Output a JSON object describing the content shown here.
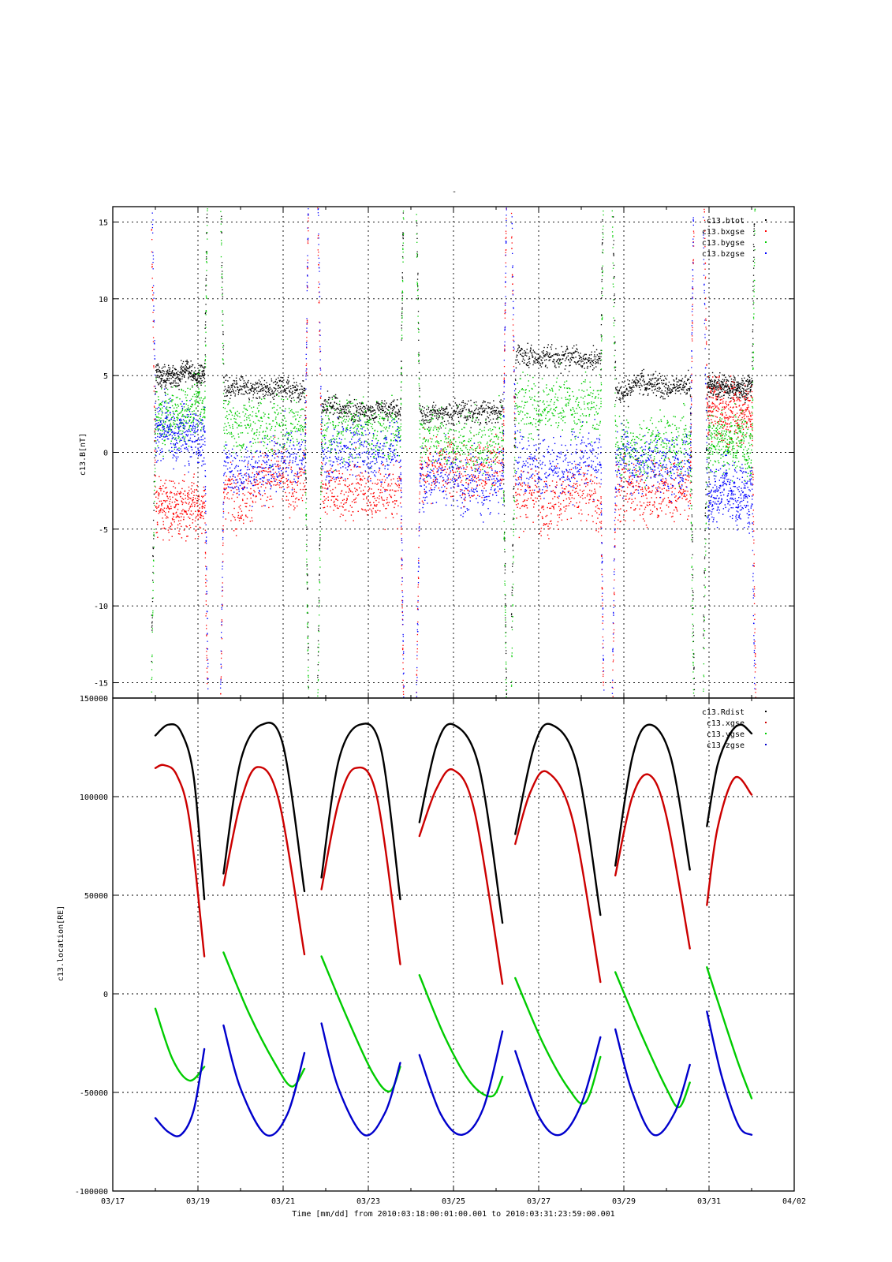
{
  "page_title": "-",
  "x_axis": {
    "tick_labels": [
      "03/17",
      "03/19",
      "03/21",
      "03/23",
      "03/25",
      "03/27",
      "03/29",
      "03/31",
      "04/02"
    ],
    "label": "Time [mm/dd]  from 2010:03:18:00:01:00.001  to  2010:03:31:23:59:00.001",
    "range": [
      "2010-03-17T00:00",
      "2010-04-02T00:00"
    ]
  },
  "chart_data": [
    {
      "type": "scatter",
      "ylabel": "c13.B[nT]",
      "ylim": [
        -16,
        16
      ],
      "yticks": [
        15,
        10,
        5,
        0,
        -5,
        -10,
        -15
      ],
      "grid": true,
      "legend_placement": "top-right",
      "x_start": "2010-03-18T00:01",
      "x_end": "2010-03-31T23:59",
      "segments": [
        [
          18.0,
          19.15
        ],
        [
          19.6,
          21.5
        ],
        [
          21.9,
          23.75
        ],
        [
          24.2,
          26.15
        ],
        [
          26.45,
          28.45
        ],
        [
          28.8,
          30.55
        ],
        [
          30.95,
          32.0
        ]
      ],
      "series": [
        {
          "name": "c13.btot",
          "color": "#000000",
          "values_by_segment": [
            5.2,
            4.2,
            2.9,
            2.7,
            6.3,
            4.3,
            4.4
          ]
        },
        {
          "name": "c13.bxgse",
          "color": "#ff0000",
          "values_by_segment": [
            -3.4,
            -2.2,
            -2.3,
            -1.2,
            -2.8,
            -2.3,
            2.8
          ]
        },
        {
          "name": "c13.bygse",
          "color": "#00cc00",
          "values_by_segment": [
            2.8,
            2.0,
            1.6,
            1.0,
            3.0,
            0.5,
            0.8
          ]
        },
        {
          "name": "c13.bzgse",
          "color": "#0000ff",
          "values_by_segment": [
            1.0,
            -0.8,
            0.0,
            -1.8,
            -0.8,
            -0.5,
            -2.5
          ]
        }
      ]
    },
    {
      "type": "scatter",
      "ylabel": "c13.location[RE]",
      "ylim": [
        -100000,
        150000
      ],
      "yticks": [
        150000,
        100000,
        50000,
        0,
        -50000,
        -100000
      ],
      "grid": true,
      "legend_placement": "top-right",
      "segments": [
        [
          18.0,
          19.15
        ],
        [
          19.6,
          21.5
        ],
        [
          21.9,
          23.75
        ],
        [
          24.2,
          26.15
        ],
        [
          26.45,
          28.45
        ],
        [
          28.8,
          30.55
        ],
        [
          30.95,
          32.0
        ]
      ],
      "series": [
        {
          "name": "c13.Rdist",
          "color": "#000000",
          "points_by_segment": [
            [
              [
                18.0,
                131000
              ],
              [
                18.3,
                136500
              ],
              [
                18.6,
                133000
              ],
              [
                18.9,
                110000
              ],
              [
                19.15,
                48000
              ]
            ],
            [
              [
                19.6,
                61000
              ],
              [
                20.0,
                118000
              ],
              [
                20.5,
                136500
              ],
              [
                21.0,
                126000
              ],
              [
                21.5,
                52000
              ]
            ],
            [
              [
                21.9,
                59000
              ],
              [
                22.3,
                118000
              ],
              [
                22.8,
                136500
              ],
              [
                23.3,
                124000
              ],
              [
                23.75,
                48000
              ]
            ],
            [
              [
                24.2,
                87000
              ],
              [
                24.6,
                126000
              ],
              [
                25.0,
                136500
              ],
              [
                25.6,
                115000
              ],
              [
                26.15,
                36000
              ]
            ],
            [
              [
                26.45,
                81000
              ],
              [
                26.9,
                126000
              ],
              [
                27.3,
                136500
              ],
              [
                27.9,
                116000
              ],
              [
                28.45,
                40000
              ]
            ],
            [
              [
                28.8,
                65000
              ],
              [
                29.2,
                120000
              ],
              [
                29.6,
                136500
              ],
              [
                30.1,
                120000
              ],
              [
                30.55,
                63000
              ]
            ],
            [
              [
                30.95,
                85000
              ],
              [
                31.2,
                116000
              ],
              [
                31.5,
                132000
              ],
              [
                31.75,
                136500
              ],
              [
                32.0,
                132000
              ]
            ]
          ]
        },
        {
          "name": "c13.xgse",
          "color": "#cc0000",
          "points_by_segment": [
            [
              [
                18.0,
                114500
              ],
              [
                18.2,
                116000
              ],
              [
                18.5,
                111000
              ],
              [
                18.8,
                88000
              ],
              [
                19.15,
                19000
              ]
            ],
            [
              [
                19.6,
                55000
              ],
              [
                20.0,
                97000
              ],
              [
                20.4,
                115000
              ],
              [
                20.9,
                98000
              ],
              [
                21.5,
                20000
              ]
            ],
            [
              [
                21.9,
                53000
              ],
              [
                22.3,
                97000
              ],
              [
                22.7,
                114500
              ],
              [
                23.2,
                100000
              ],
              [
                23.75,
                15000
              ]
            ],
            [
              [
                24.2,
                80000
              ],
              [
                24.6,
                104000
              ],
              [
                25.0,
                113500
              ],
              [
                25.5,
                92000
              ],
              [
                26.15,
                5000
              ]
            ],
            [
              [
                26.45,
                76000
              ],
              [
                26.8,
                102000
              ],
              [
                27.2,
                112500
              ],
              [
                27.8,
                88000
              ],
              [
                28.45,
                6000
              ]
            ],
            [
              [
                28.8,
                60000
              ],
              [
                29.2,
                100000
              ],
              [
                29.6,
                111000
              ],
              [
                30.0,
                90000
              ],
              [
                30.55,
                23000
              ]
            ],
            [
              [
                30.95,
                45000
              ],
              [
                31.2,
                84000
              ],
              [
                31.6,
                109500
              ],
              [
                32.0,
                101000
              ]
            ]
          ]
        },
        {
          "name": "c13.ygse",
          "color": "#00cc00",
          "points_by_segment": [
            [
              [
                18.0,
                -7500
              ],
              [
                18.4,
                -33000
              ],
              [
                18.8,
                -44000
              ],
              [
                19.15,
                -37000
              ]
            ],
            [
              [
                19.6,
                21000
              ],
              [
                20.2,
                -10000
              ],
              [
                20.8,
                -35000
              ],
              [
                21.2,
                -47000
              ],
              [
                21.5,
                -38000
              ]
            ],
            [
              [
                21.9,
                19000
              ],
              [
                22.5,
                -12000
              ],
              [
                23.1,
                -40000
              ],
              [
                23.5,
                -49500
              ],
              [
                23.75,
                -37000
              ]
            ],
            [
              [
                24.2,
                9500
              ],
              [
                24.8,
                -22000
              ],
              [
                25.4,
                -45000
              ],
              [
                25.9,
                -52000
              ],
              [
                26.15,
                -42000
              ]
            ],
            [
              [
                26.45,
                8000
              ],
              [
                27.1,
                -25000
              ],
              [
                27.7,
                -48000
              ],
              [
                28.1,
                -55000
              ],
              [
                28.45,
                -32000
              ]
            ],
            [
              [
                28.8,
                11000
              ],
              [
                29.4,
                -20000
              ],
              [
                30.0,
                -48000
              ],
              [
                30.3,
                -57500
              ],
              [
                30.55,
                -45000
              ]
            ],
            [
              [
                30.95,
                13500
              ],
              [
                31.3,
                -10000
              ],
              [
                31.7,
                -36000
              ],
              [
                32.0,
                -53000
              ]
            ]
          ]
        },
        {
          "name": "c13.zgse",
          "color": "#0000cc",
          "points_by_segment": [
            [
              [
                18.0,
                -63000
              ],
              [
                18.3,
                -70000
              ],
              [
                18.6,
                -71500
              ],
              [
                18.9,
                -59000
              ],
              [
                19.15,
                -28000
              ]
            ],
            [
              [
                19.6,
                -16000
              ],
              [
                20.0,
                -48000
              ],
              [
                20.6,
                -71500
              ],
              [
                21.1,
                -61000
              ],
              [
                21.5,
                -30000
              ]
            ],
            [
              [
                21.9,
                -15000
              ],
              [
                22.3,
                -48000
              ],
              [
                22.9,
                -71500
              ],
              [
                23.4,
                -60000
              ],
              [
                23.75,
                -35000
              ]
            ],
            [
              [
                24.2,
                -31000
              ],
              [
                24.7,
                -61000
              ],
              [
                25.2,
                -71500
              ],
              [
                25.7,
                -58000
              ],
              [
                26.15,
                -19000
              ]
            ],
            [
              [
                26.45,
                -29000
              ],
              [
                27.0,
                -62000
              ],
              [
                27.5,
                -71500
              ],
              [
                28.0,
                -56000
              ],
              [
                28.45,
                -22000
              ]
            ],
            [
              [
                28.8,
                -18000
              ],
              [
                29.2,
                -50000
              ],
              [
                29.7,
                -71500
              ],
              [
                30.2,
                -60000
              ],
              [
                30.55,
                -36000
              ]
            ],
            [
              [
                30.95,
                -9000
              ],
              [
                31.3,
                -42000
              ],
              [
                31.7,
                -67000
              ],
              [
                32.0,
                -71500
              ]
            ]
          ]
        }
      ]
    }
  ]
}
